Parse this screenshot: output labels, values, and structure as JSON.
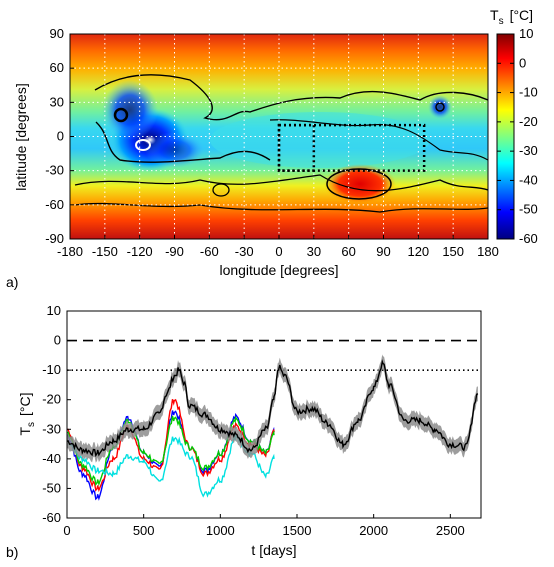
{
  "chart_data": [
    {
      "type": "heatmap",
      "panel_label": "a)",
      "xlabel": "longitude [degrees]",
      "ylabel": "latitude [degrees]",
      "xlim": [
        -180,
        180
      ],
      "ylim": [
        -90,
        90
      ],
      "xticks": [
        "-180",
        "-150",
        "-120",
        "-90",
        "-60",
        "-30",
        "0",
        "30",
        "60",
        "90",
        "120",
        "150",
        "180"
      ],
      "yticks": [
        "90",
        "60",
        "30",
        "0",
        "-30",
        "-60",
        "-90"
      ],
      "colorbar": {
        "label_main": "T",
        "label_sub": "s",
        "label_unit": "[°C]",
        "range": [
          -60,
          10
        ],
        "ticks": [
          "10",
          "0",
          "-10",
          "-20",
          "-30",
          "-40",
          "-50",
          "-60"
        ],
        "colormap": "jet"
      },
      "grid": "dotted white",
      "boxes_dotted": [
        {
          "lon": [
            0,
            125
          ],
          "lat": [
            -30,
            10
          ]
        },
        {
          "lon": [
            0,
            30
          ],
          "lat": [
            -30,
            10
          ]
        }
      ],
      "features": [
        {
          "name": "cold region",
          "lon": -110,
          "lat": -5,
          "approx_c": -55
        },
        {
          "name": "cold spot",
          "lon": -125,
          "lat": 20,
          "approx_c": -50
        },
        {
          "name": "cold spot",
          "lon": 145,
          "lat": 25,
          "approx_c": -45
        },
        {
          "name": "warm basin",
          "lon": 70,
          "lat": -42,
          "approx_c": 3
        },
        {
          "name": "warm polar band",
          "lat": -75,
          "approx_c": 5
        },
        {
          "name": "warm northern band",
          "lat": 80,
          "approx_c": 2
        }
      ]
    },
    {
      "type": "line",
      "panel_label": "b)",
      "xlabel": "t [days]",
      "ylabel_main": "T",
      "ylabel_sub": "s",
      "ylabel_unit": "[°C]",
      "xlim": [
        0,
        2700
      ],
      "ylim": [
        -60,
        10
      ],
      "xticks": [
        "0",
        "500",
        "1000",
        "1500",
        "2000",
        "2500"
      ],
      "yticks": [
        "10",
        "0",
        "-10",
        "-20",
        "-30",
        "-40",
        "-50",
        "-60"
      ],
      "reference_lines": [
        {
          "y": 0,
          "style": "dashed"
        },
        {
          "y": -10,
          "style": "dotted"
        }
      ],
      "series": [
        {
          "color": "#000000",
          "band_color": "#8c8c8c",
          "x": [
            0,
            100,
            200,
            300,
            400,
            500,
            600,
            650,
            700,
            730,
            760,
            800,
            900,
            1000,
            1100,
            1200,
            1300,
            1350,
            1380,
            1420,
            1500,
            1600,
            1700,
            1800,
            1900,
            2000,
            2060,
            2100,
            2200,
            2300,
            2400,
            2500,
            2600,
            2680
          ],
          "y": [
            -34,
            -37,
            -38,
            -34,
            -30,
            -30,
            -25,
            -18,
            -12,
            -10,
            -14,
            -22,
            -25,
            -30,
            -32,
            -37,
            -30,
            -20,
            -9,
            -12,
            -24,
            -23,
            -28,
            -35,
            -27,
            -16,
            -8,
            -15,
            -27,
            -27,
            -30,
            -35,
            -36,
            -18
          ]
        },
        {
          "color": "#0000ff",
          "x": [
            0,
            100,
            200,
            300,
            400,
            500,
            600,
            700,
            800,
            900,
            1000,
            1100,
            1200,
            1300,
            1350
          ],
          "y": [
            -32,
            -45,
            -53,
            -36,
            -26,
            -38,
            -43,
            -24,
            -36,
            -44,
            -38,
            -26,
            -34,
            -38,
            -31
          ]
        },
        {
          "color": "#ff0000",
          "x": [
            0,
            100,
            200,
            300,
            400,
            500,
            600,
            700,
            800,
            900,
            1000,
            1100,
            1200,
            1300,
            1350
          ],
          "y": [
            -30,
            -43,
            -50,
            -40,
            -29,
            -40,
            -44,
            -20,
            -36,
            -45,
            -40,
            -29,
            -35,
            -39,
            -31
          ]
        },
        {
          "color": "#00cc00",
          "x": [
            0,
            100,
            200,
            300,
            400,
            500,
            600,
            700,
            800,
            900,
            1000,
            1100,
            1200,
            1300,
            1350
          ],
          "y": [
            -31,
            -42,
            -48,
            -36,
            -27,
            -38,
            -42,
            -26,
            -36,
            -43,
            -38,
            -27,
            -34,
            -38,
            -32
          ]
        },
        {
          "color": "#00e0e0",
          "x": [
            0,
            100,
            200,
            300,
            400,
            500,
            600,
            700,
            800,
            900,
            1000,
            1100,
            1200,
            1300,
            1350
          ],
          "y": [
            -34,
            -40,
            -44,
            -45,
            -39,
            -41,
            -48,
            -33,
            -39,
            -52,
            -47,
            -33,
            -38,
            -46,
            -40
          ]
        }
      ]
    }
  ]
}
